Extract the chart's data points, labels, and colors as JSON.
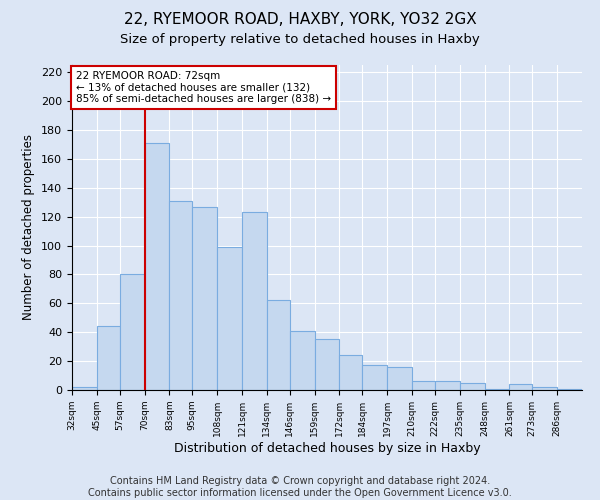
{
  "title1": "22, RYEMOOR ROAD, HAXBY, YORK, YO32 2GX",
  "title2": "Size of property relative to detached houses in Haxby",
  "xlabel": "Distribution of detached houses by size in Haxby",
  "ylabel": "Number of detached properties",
  "footer1": "Contains HM Land Registry data © Crown copyright and database right 2024.",
  "footer2": "Contains public sector information licensed under the Open Government Licence v3.0.",
  "bin_labels": [
    "32sqm",
    "45sqm",
    "57sqm",
    "70sqm",
    "83sqm",
    "95sqm",
    "108sqm",
    "121sqm",
    "134sqm",
    "146sqm",
    "159sqm",
    "172sqm",
    "184sqm",
    "197sqm",
    "210sqm",
    "222sqm",
    "235sqm",
    "248sqm",
    "261sqm",
    "273sqm",
    "286sqm"
  ],
  "bin_edges": [
    32,
    45,
    57,
    70,
    83,
    95,
    108,
    121,
    134,
    146,
    159,
    172,
    184,
    197,
    210,
    222,
    235,
    248,
    261,
    273,
    286,
    299
  ],
  "bar_heights": [
    2,
    44,
    80,
    171,
    131,
    127,
    99,
    123,
    62,
    41,
    35,
    24,
    17,
    16,
    6,
    6,
    5,
    1,
    4,
    2,
    1
  ],
  "bar_color": "#c5d8ef",
  "bar_edge_color": "#7aace0",
  "vline_x": 70,
  "vline_color": "#cc0000",
  "annotation_title": "22 RYEMOOR ROAD: 72sqm",
  "annotation_line1": "← 13% of detached houses are smaller (132)",
  "annotation_line2": "85% of semi-detached houses are larger (838) →",
  "annotation_box_color": "#cc0000",
  "ylim": [
    0,
    225
  ],
  "yticks": [
    0,
    20,
    40,
    60,
    80,
    100,
    120,
    140,
    160,
    180,
    200,
    220
  ],
  "background_color": "#dce6f5",
  "plot_bg_color": "#dce6f5",
  "title1_fontsize": 11,
  "title2_fontsize": 9.5,
  "xlabel_fontsize": 9,
  "ylabel_fontsize": 8.5,
  "footer_fontsize": 7
}
